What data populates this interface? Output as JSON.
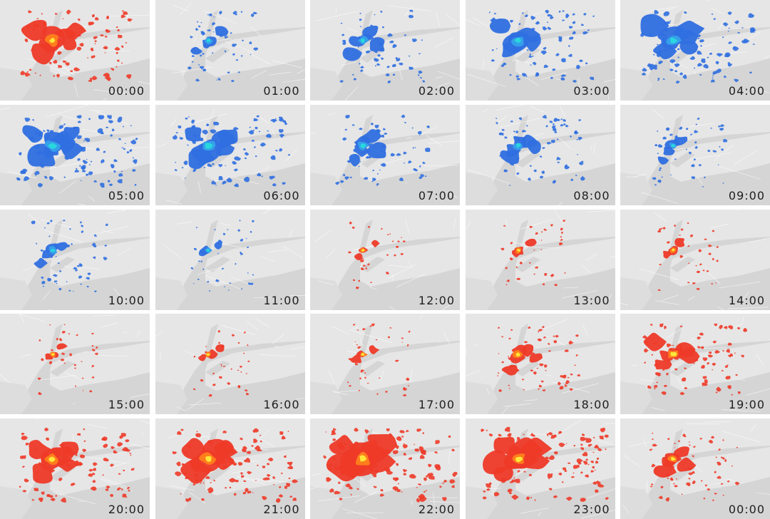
{
  "panels": [
    {
      "time": "00:00",
      "level": 0.75
    },
    {
      "time": "01:00",
      "level": -0.35
    },
    {
      "time": "02:00",
      "level": -0.45
    },
    {
      "time": "03:00",
      "level": -0.7
    },
    {
      "time": "04:00",
      "level": -0.8
    },
    {
      "time": "05:00",
      "level": -0.9
    },
    {
      "time": "06:00",
      "level": -0.8
    },
    {
      "time": "07:00",
      "level": -0.55
    },
    {
      "time": "08:00",
      "level": -0.5
    },
    {
      "time": "09:00",
      "level": -0.3
    },
    {
      "time": "10:00",
      "level": -0.35
    },
    {
      "time": "11:00",
      "level": -0.2
    },
    {
      "time": "12:00",
      "level": 0.1
    },
    {
      "time": "13:00",
      "level": 0.2
    },
    {
      "time": "14:00",
      "level": 0.2
    },
    {
      "time": "15:00",
      "level": 0.15
    },
    {
      "time": "16:00",
      "level": 0.15
    },
    {
      "time": "17:00",
      "level": 0.2
    },
    {
      "time": "18:00",
      "level": 0.45
    },
    {
      "time": "19:00",
      "level": 0.65
    },
    {
      "time": "20:00",
      "level": 0.8
    },
    {
      "time": "21:00",
      "level": 0.9
    },
    {
      "time": "22:00",
      "level": 1.0
    },
    {
      "time": "23:00",
      "level": 0.95
    },
    {
      "time": "00:00",
      "level": 0.5
    }
  ],
  "colors": {
    "map_land": "#e6e6e6",
    "map_water": "#d5d5d5",
    "roads": "#ffffff",
    "low_outer": "#2f6fe0",
    "low_mid": "#35a0ea",
    "low_core": "#28d7de",
    "high_outer": "#ee3a28",
    "high_mid": "#ff7d1c",
    "high_core": "#ffe63a"
  }
}
